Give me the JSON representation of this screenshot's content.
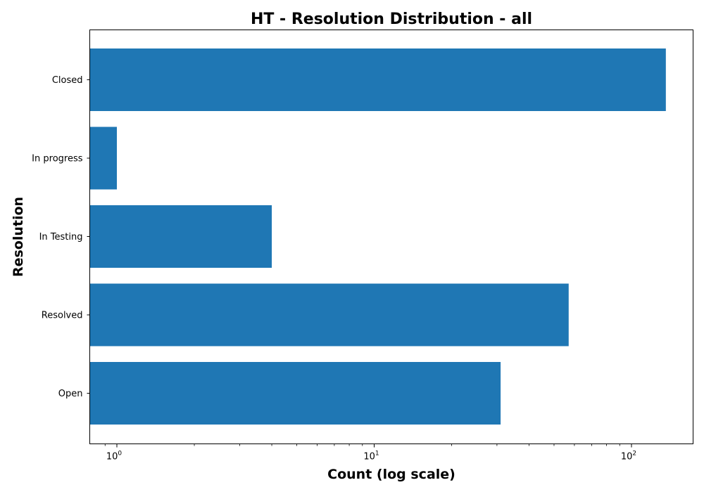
{
  "chart_data": {
    "type": "bar",
    "orientation": "horizontal",
    "title": "HT - Resolution Distribution - all",
    "xlabel": "Count (log scale)",
    "ylabel": "Resolution",
    "x_scale": "log",
    "xlim": [
      0.9,
      160
    ],
    "categories": [
      "Closed",
      "In progress",
      "In Testing",
      "Resolved",
      "Open"
    ],
    "values": [
      136,
      1,
      4,
      57,
      31
    ],
    "x_ticks": [
      {
        "base": "10",
        "exp": "0",
        "value": 1
      },
      {
        "base": "10",
        "exp": "1",
        "value": 10
      },
      {
        "base": "10",
        "exp": "2",
        "value": 100
      }
    ],
    "bar_color": "#1f77b4",
    "grid": false,
    "legend": "none"
  }
}
